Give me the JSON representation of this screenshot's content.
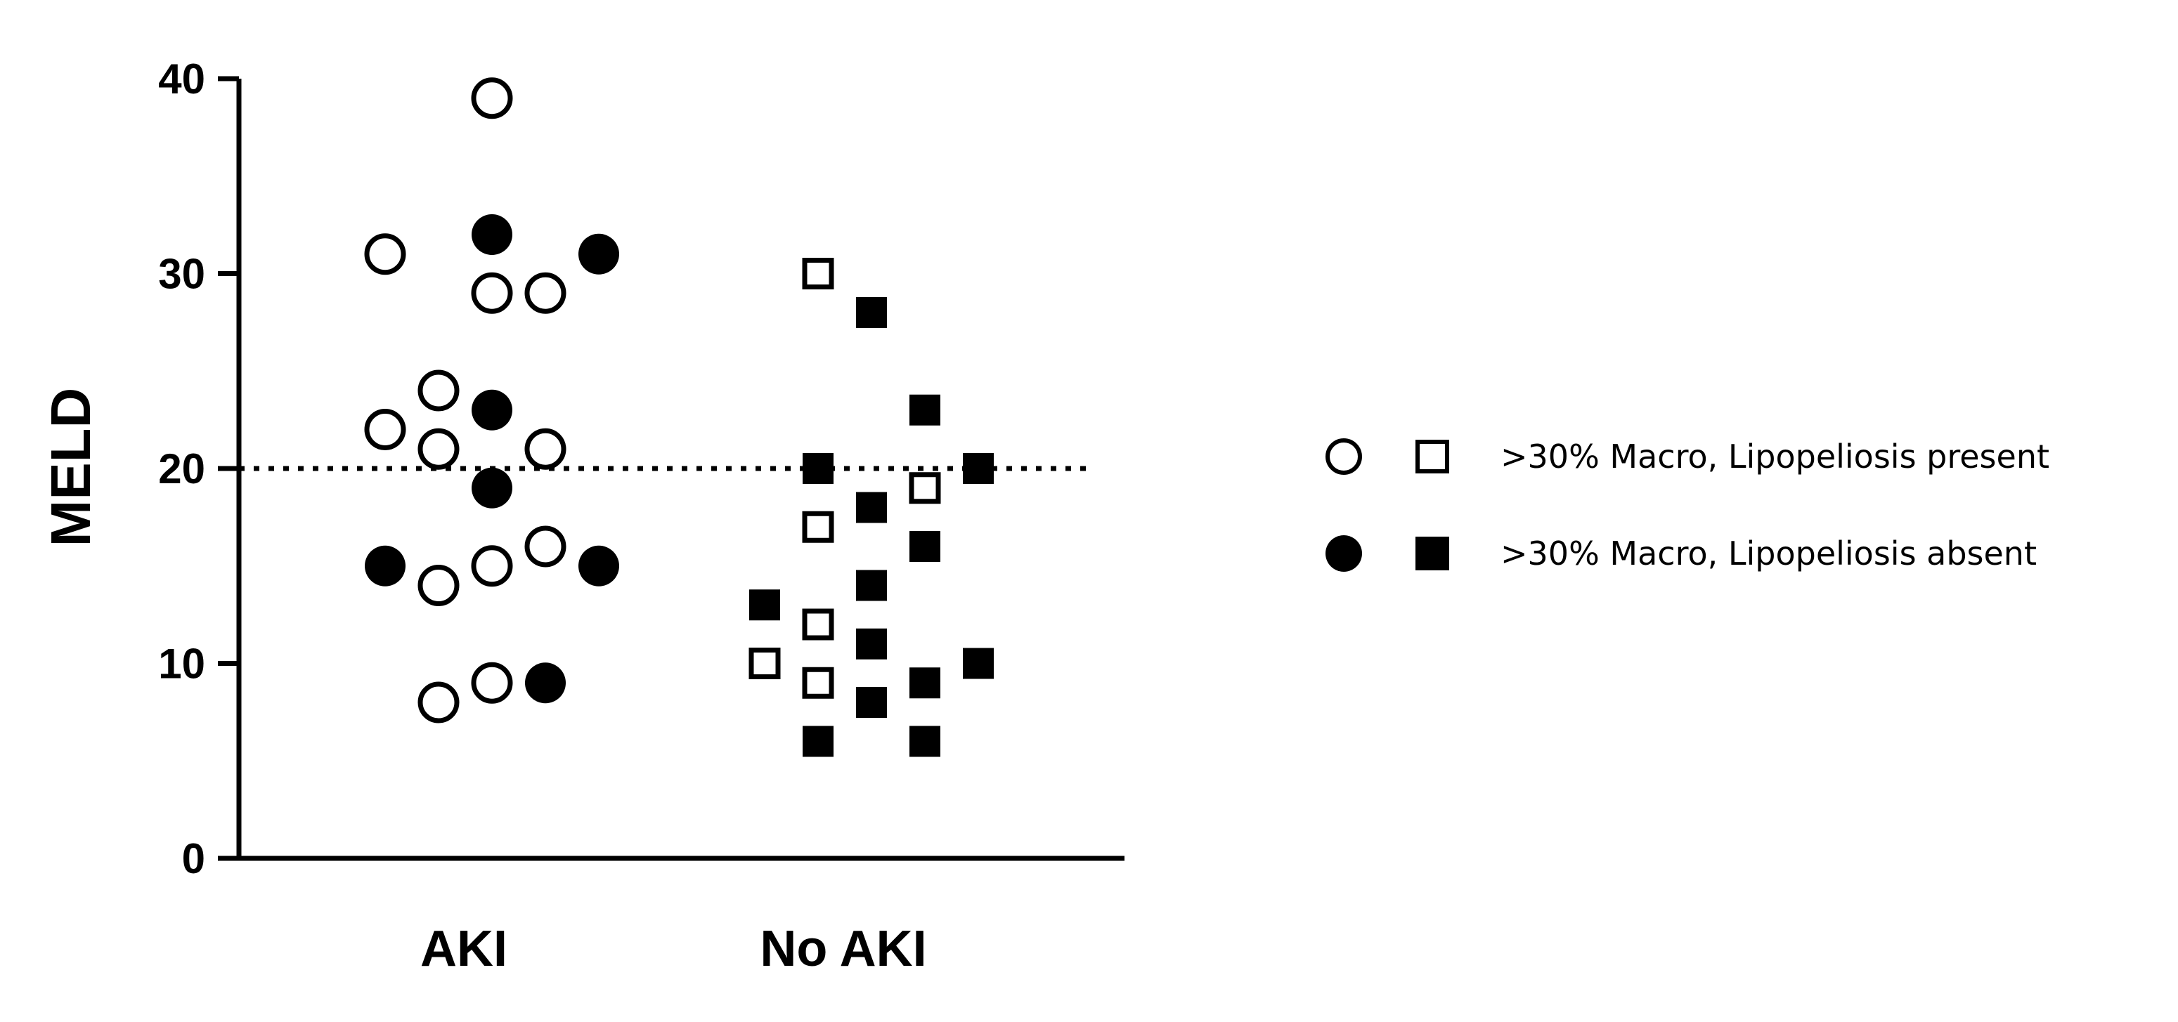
{
  "chart_data": {
    "type": "scatter",
    "ylabel": "MELD",
    "xlabel": "",
    "ylim": [
      0,
      40
    ],
    "yticks": [
      0,
      10,
      20,
      30,
      40
    ],
    "categories": [
      "AKI",
      "No AKI"
    ],
    "reference_line": {
      "y": 20,
      "style": "dotted"
    },
    "legend": {
      "placement": "right",
      "entries": [
        {
          "label": ">30% Macro, Lipopeliosis present",
          "fill": "open",
          "markers": [
            "circle",
            "square"
          ]
        },
        {
          "label": ">30% Macro, Lipopeliosis absent",
          "fill": "filled",
          "markers": [
            "circle",
            "square"
          ]
        }
      ]
    },
    "series": [
      {
        "group": "AKI",
        "marker": "circle",
        "fill": "open",
        "points": [
          {
            "x": 0,
            "y": 39
          },
          {
            "x": -2,
            "y": 31
          },
          {
            "x": 0,
            "y": 29
          },
          {
            "x": 1,
            "y": 29
          },
          {
            "x": -1,
            "y": 24
          },
          {
            "x": -2,
            "y": 22
          },
          {
            "x": -1,
            "y": 21
          },
          {
            "x": 1,
            "y": 21
          },
          {
            "x": 1,
            "y": 16
          },
          {
            "x": 0,
            "y": 15
          },
          {
            "x": -1,
            "y": 14
          },
          {
            "x": 0,
            "y": 9
          },
          {
            "x": -1,
            "y": 8
          }
        ]
      },
      {
        "group": "AKI",
        "marker": "circle",
        "fill": "filled",
        "points": [
          {
            "x": 0,
            "y": 32
          },
          {
            "x": 2,
            "y": 31
          },
          {
            "x": 0,
            "y": 23
          },
          {
            "x": 0,
            "y": 19
          },
          {
            "x": -2,
            "y": 15
          },
          {
            "x": 2,
            "y": 15
          },
          {
            "x": 1,
            "y": 9
          }
        ]
      },
      {
        "group": "No AKI",
        "marker": "square",
        "fill": "open",
        "points": [
          {
            "x": -1,
            "y": 30
          },
          {
            "x": 1,
            "y": 19
          },
          {
            "x": -1,
            "y": 17
          },
          {
            "x": -1,
            "y": 12
          },
          {
            "x": -2,
            "y": 10
          },
          {
            "x": -1,
            "y": 9
          }
        ]
      },
      {
        "group": "No AKI",
        "marker": "square",
        "fill": "filled",
        "points": [
          {
            "x": 0,
            "y": 28
          },
          {
            "x": 1,
            "y": 23
          },
          {
            "x": -1,
            "y": 20
          },
          {
            "x": 2,
            "y": 20
          },
          {
            "x": 0,
            "y": 18
          },
          {
            "x": 1,
            "y": 16
          },
          {
            "x": 0,
            "y": 14
          },
          {
            "x": -2,
            "y": 13
          },
          {
            "x": 0,
            "y": 11
          },
          {
            "x": 2,
            "y": 10
          },
          {
            "x": 1,
            "y": 9
          },
          {
            "x": 0,
            "y": 8
          },
          {
            "x": -1,
            "y": 6
          },
          {
            "x": 1,
            "y": 6
          }
        ]
      }
    ]
  }
}
